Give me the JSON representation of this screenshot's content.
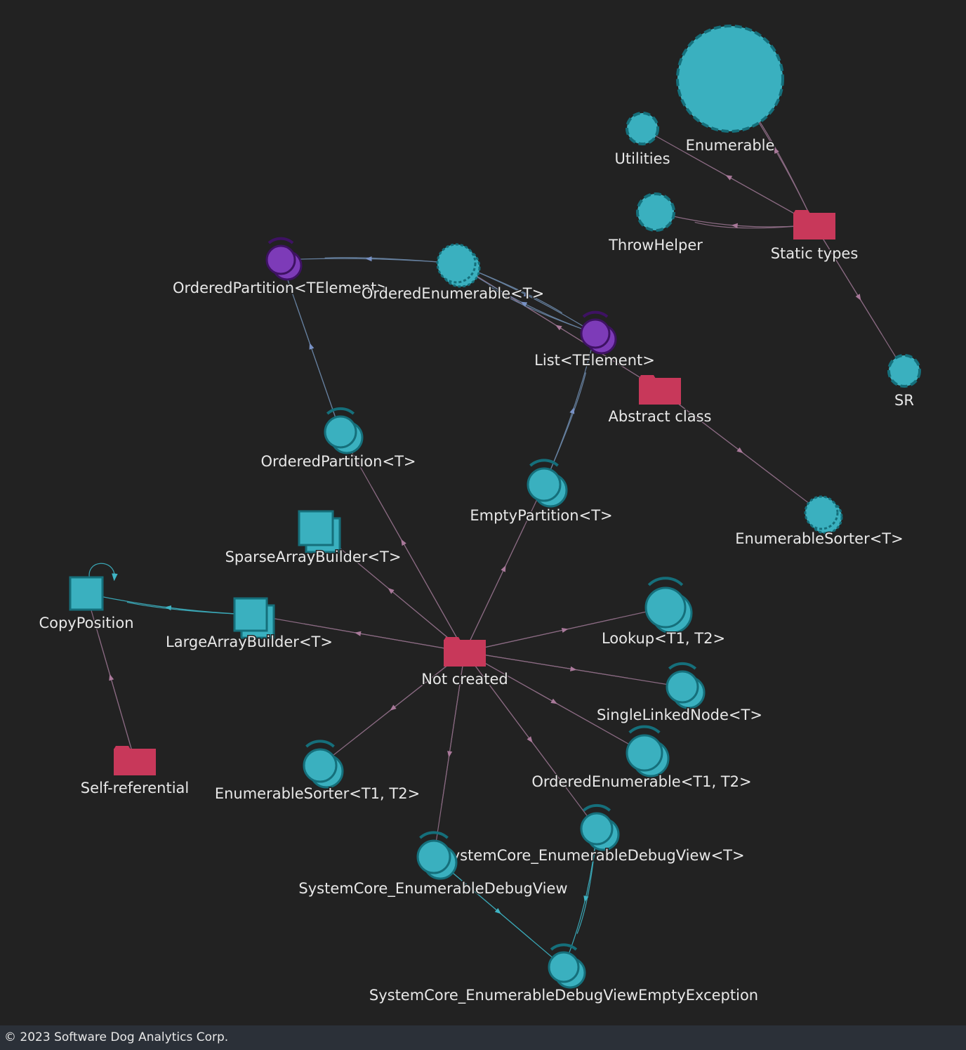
{
  "nodes": [
    {
      "label": "Enumerable"
    },
    {
      "label": "Utilities"
    },
    {
      "label": "ThrowHelper"
    },
    {
      "label": "Static types"
    },
    {
      "label": "SR"
    },
    {
      "label": "OrderedPartition<TElement>"
    },
    {
      "label": "OrderedEnumerable<T>"
    },
    {
      "label": "List<TElement>"
    },
    {
      "label": "Abstract class"
    },
    {
      "label": "OrderedPartition<T>"
    },
    {
      "label": "EmptyPartition<T>"
    },
    {
      "label": "EnumerableSorter<T>"
    },
    {
      "label": "SparseArrayBuilder<T>"
    },
    {
      "label": "CopyPosition"
    },
    {
      "label": "LargeArrayBuilder<T>"
    },
    {
      "label": "Not created"
    },
    {
      "label": "Lookup<T1, T2>"
    },
    {
      "label": "SingleLinkedNode<T>"
    },
    {
      "label": "OrderedEnumerable<T1, T2>"
    },
    {
      "label": "Self-referential"
    },
    {
      "label": "EnumerableSorter<T1, T2>"
    },
    {
      "label": "SystemCore_EnumerableDebugView<T>"
    },
    {
      "label": "SystemCore_EnumerableDebugView"
    },
    {
      "label": "SystemCore_EnumerableDebugViewEmptyException"
    }
  ],
  "footer": {
    "text": "© 2023 Software Dog Analytics Corp."
  }
}
